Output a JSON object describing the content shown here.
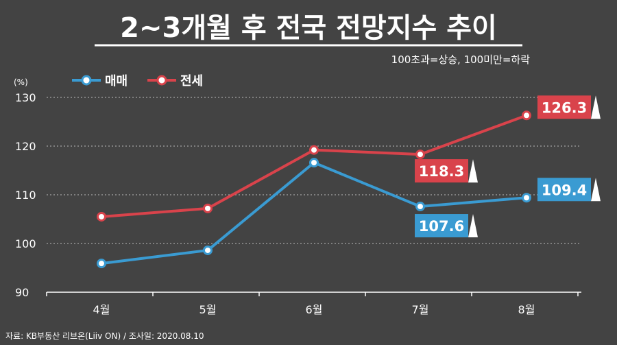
{
  "title": "2~3개월 후 전국 전망지수 추이",
  "subtitle": "100초과=상승, 100미만=하락",
  "source": "자료: KB부동산 리브온(Liiv ON)  / 조사일: 2020.08.10",
  "chart_data": {
    "type": "line",
    "unit_label": "(%)",
    "categories": [
      "4월",
      "5월",
      "6월",
      "7월",
      "8월"
    ],
    "series": [
      {
        "name": "매매",
        "color": "#3a9bd2",
        "values": [
          95.9,
          98.6,
          116.6,
          107.6,
          109.4
        ]
      },
      {
        "name": "전세",
        "color": "#d9434b",
        "values": [
          105.5,
          107.2,
          119.2,
          118.3,
          126.3
        ]
      }
    ],
    "value_labels": [
      {
        "series": 0,
        "index": 3,
        "text": "107.6"
      },
      {
        "series": 0,
        "index": 4,
        "text": "109.4"
      },
      {
        "series": 1,
        "index": 3,
        "text": "118.3"
      },
      {
        "series": 1,
        "index": 4,
        "text": "126.3"
      }
    ],
    "ylim": [
      90,
      130
    ],
    "yticks": [
      90,
      100,
      110,
      120,
      130
    ],
    "grid": true,
    "legend_position": "top-left",
    "xlabel": "",
    "ylabel": ""
  }
}
